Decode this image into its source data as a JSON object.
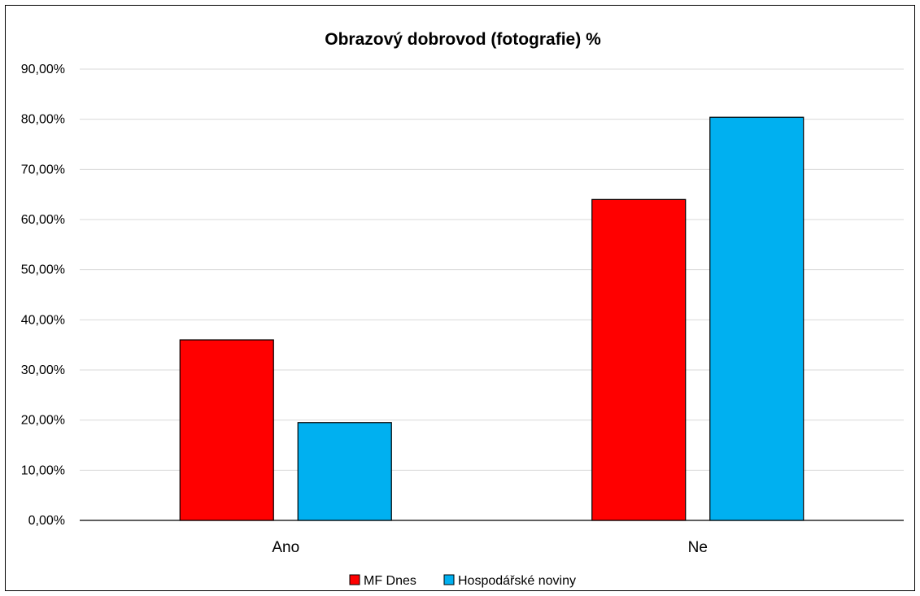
{
  "chart_data": {
    "type": "bar",
    "title": "Obrazový dobrovod (fotografie) %",
    "xlabel": "",
    "ylabel": "",
    "categories": [
      "Ano",
      "Ne"
    ],
    "series": [
      {
        "name": "MF Dnes",
        "values": [
          36.0,
          64.0
        ],
        "color": "#ff0000"
      },
      {
        "name": "Hospodářské noviny",
        "values": [
          19.5,
          80.4
        ],
        "color": "#00b0f0"
      }
    ],
    "ylim": [
      0,
      90
    ],
    "yticks": [
      0,
      10,
      20,
      30,
      40,
      50,
      60,
      70,
      80,
      90
    ],
    "ytick_labels": [
      "0,00%",
      "10,00%",
      "20,00%",
      "30,00%",
      "40,00%",
      "50,00%",
      "60,00%",
      "70,00%",
      "80,00%",
      "90,00%"
    ],
    "grid": true,
    "legend_position": "bottom"
  }
}
